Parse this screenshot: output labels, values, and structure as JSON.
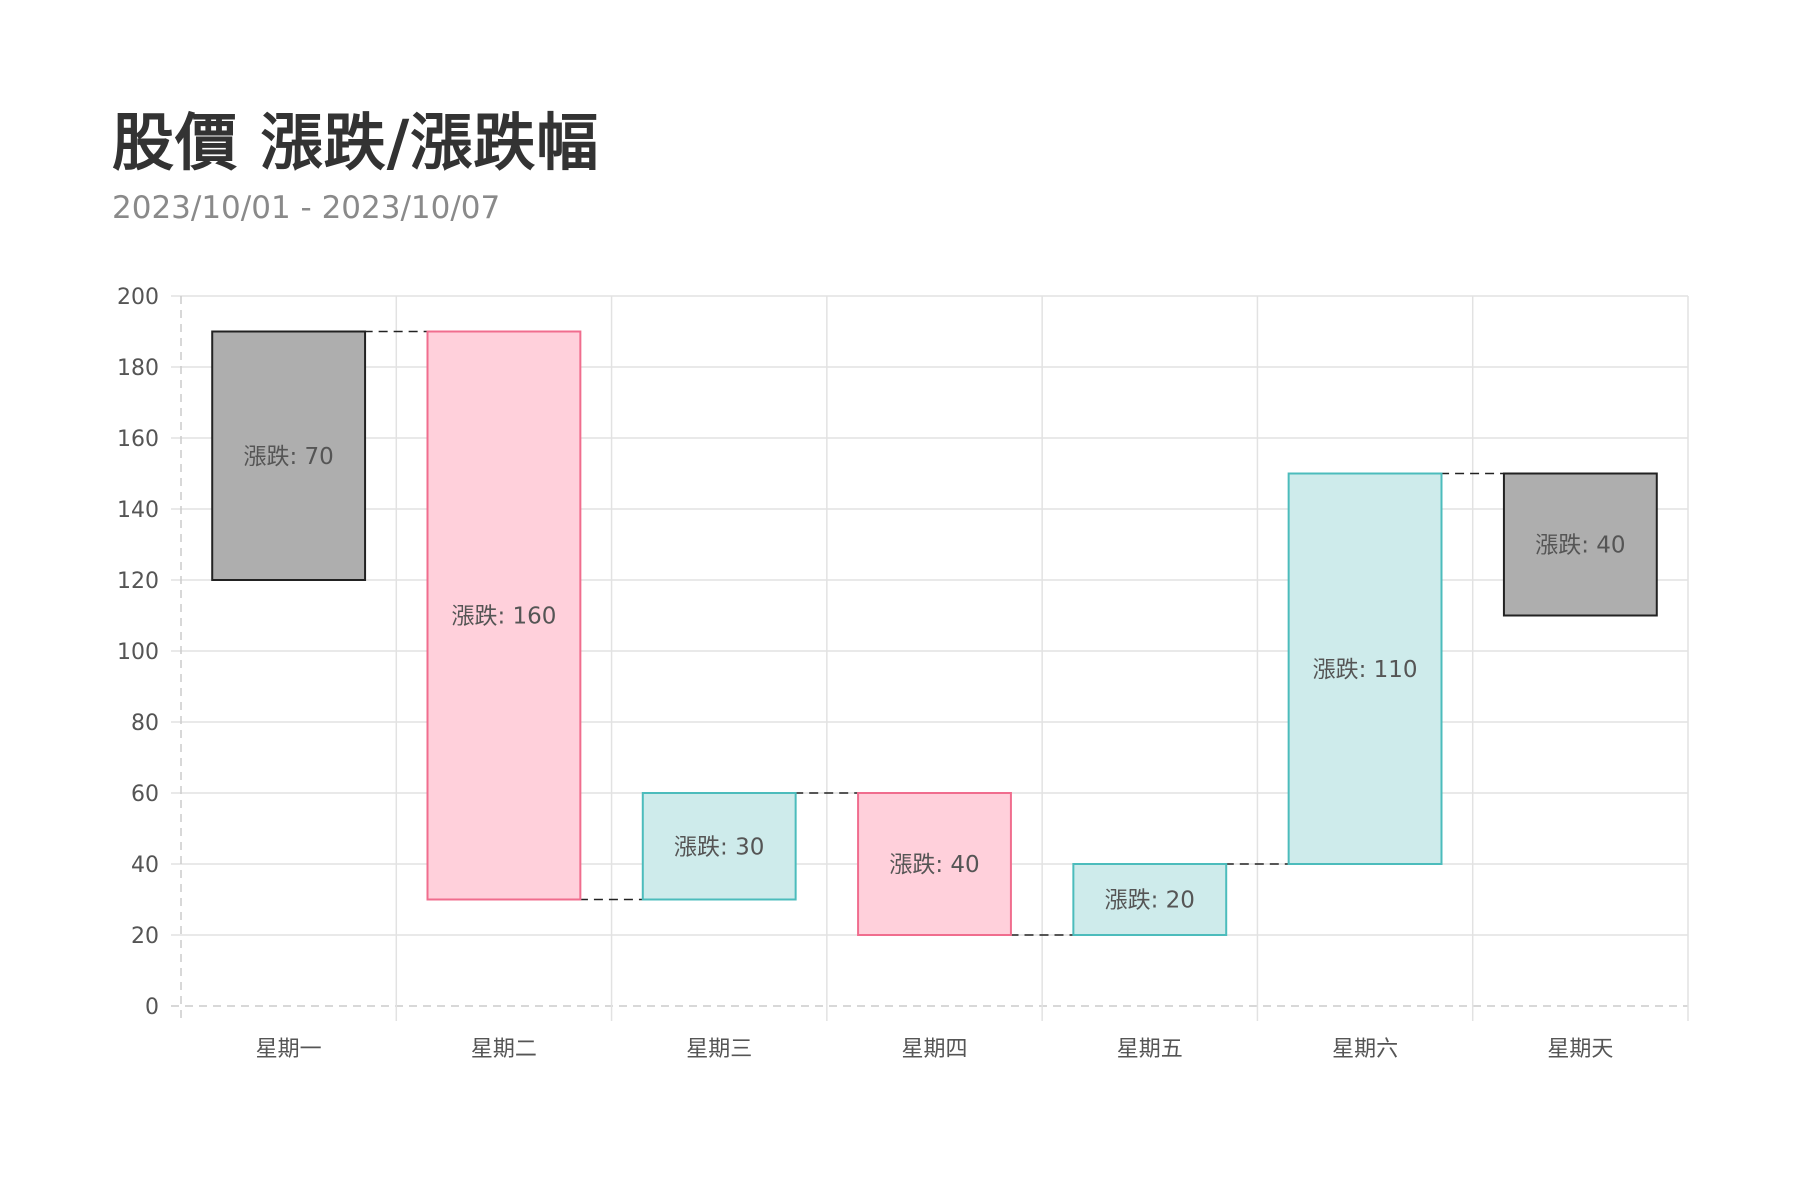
{
  "title": "股價 漲跌/漲跌幅",
  "subtitle": "2023/10/01 - 2023/10/07",
  "chart_data": {
    "type": "bar",
    "subtype": "floating-waterfall",
    "title": "股價 漲跌/漲跌幅",
    "subtitle": "2023/10/01 - 2023/10/07",
    "categories": [
      "星期一",
      "星期二",
      "星期三",
      "星期四",
      "星期五",
      "星期六",
      "星期天"
    ],
    "ranges": [
      [
        120,
        190
      ],
      [
        30,
        190
      ],
      [
        30,
        60
      ],
      [
        20,
        60
      ],
      [
        20,
        40
      ],
      [
        40,
        150
      ],
      [
        110,
        150
      ]
    ],
    "labels": [
      "漲跌: 70",
      "漲跌: 160",
      "漲跌: 30",
      "漲跌: 40",
      "漲跌: 20",
      "漲跌: 110",
      "漲跌: 40"
    ],
    "kinds": [
      "total",
      "decrease",
      "increase",
      "decrease",
      "increase",
      "increase",
      "total"
    ],
    "ylim": [
      0,
      200
    ],
    "yticks": [
      0,
      20,
      40,
      60,
      80,
      100,
      120,
      140,
      160,
      180,
      200
    ],
    "grid": true,
    "legend": "none",
    "colors": {
      "total_fill": "#aeaeae",
      "total_border": "#222222",
      "decrease_fill": "#ffd0db",
      "decrease_border": "#f06d8e",
      "increase_fill": "#ceebeb",
      "increase_border": "#4cbcbc",
      "grid": "#e2e2e2",
      "connector": "#222222"
    }
  }
}
